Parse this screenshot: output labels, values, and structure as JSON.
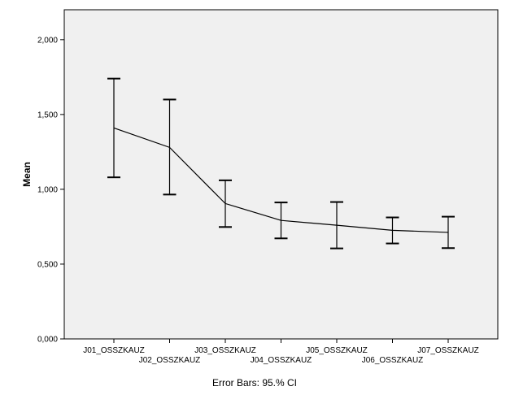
{
  "chart_data": {
    "type": "line",
    "categories": [
      "J01_OSSZKAUZ",
      "J02_OSSZKAUZ",
      "J03_OSSZKAUZ",
      "J04_OSSZKAUZ",
      "J05_OSSZKAUZ",
      "J06_OSSZKAUZ",
      "J07_OSSZKAUZ"
    ],
    "values": [
      1.41,
      1.28,
      0.905,
      0.792,
      0.76,
      0.726,
      0.712
    ],
    "error_low": [
      1.08,
      0.965,
      0.748,
      0.672,
      0.605,
      0.638,
      0.607
    ],
    "error_high": [
      1.74,
      1.6,
      1.06,
      0.912,
      0.915,
      0.812,
      0.817
    ],
    "ylabel": "Mean",
    "xlabel": "",
    "ylim": [
      0,
      2.2
    ],
    "yticks": [
      0,
      0.5,
      1,
      1.5,
      2
    ],
    "ytick_labels": [
      "0,000",
      "0,500",
      "1,000",
      "1,500",
      "2,000"
    ],
    "grid": false,
    "footnote": "Error Bars: 95.% CI",
    "colors": {
      "plot_background": "#f0f0f0",
      "line": "#000000"
    }
  }
}
